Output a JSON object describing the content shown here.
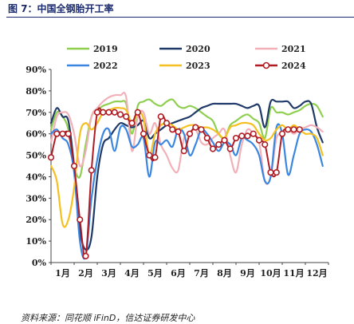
{
  "header": {
    "title": "图 7：中国全钢胎开工率"
  },
  "footer": {
    "source": "资料来源：同花顺 iFinD，信达证券研发中心"
  },
  "chart_data": {
    "type": "line",
    "title": "图 7：中国全钢胎开工率",
    "xlabel": "",
    "ylabel": "",
    "ylim": [
      0,
      90
    ],
    "xlim": [
      0,
      12
    ],
    "y_ticks": [
      "0%",
      "10%",
      "20%",
      "30%",
      "40%",
      "50%",
      "60%",
      "70%",
      "80%",
      "90%"
    ],
    "x_ticks": [
      "1月",
      "2月",
      "3月",
      "4月",
      "5月",
      "6月",
      "7月",
      "8月",
      "9月",
      "10月",
      "11月",
      "12月"
    ],
    "grid": false,
    "legend": "top",
    "series": [
      {
        "name": "2019",
        "color": "#8fcf4f",
        "marker": false,
        "x": [
          0,
          0.25,
          0.5,
          0.75,
          1,
          1.25,
          1.5,
          1.75,
          2,
          2.25,
          2.5,
          2.75,
          3,
          3.25,
          3.5,
          3.75,
          4,
          4.25,
          4.5,
          4.75,
          5,
          5.25,
          5.5,
          5.75,
          6,
          6.25,
          6.5,
          6.75,
          7,
          7.25,
          7.5,
          7.75,
          8,
          8.25,
          8.5,
          8.75,
          9,
          9.25,
          9.5,
          9.75,
          10,
          10.25,
          10.5,
          10.75,
          11,
          11.25,
          11.5,
          11.75
        ],
        "y": [
          62,
          70,
          68,
          62,
          45,
          40,
          55,
          68,
          71,
          73,
          74,
          75,
          75,
          74,
          60,
          73,
          75,
          76,
          74,
          73,
          75,
          76,
          73,
          72,
          73,
          72,
          70,
          68,
          66,
          60,
          58,
          64,
          66,
          68,
          69,
          67,
          65,
          58,
          72,
          70,
          70,
          69,
          70,
          71,
          73,
          74,
          73,
          68
        ]
      },
      {
        "name": "2020",
        "color": "#1f3a68",
        "marker": false,
        "x": [
          0,
          0.25,
          0.5,
          0.75,
          1,
          1.25,
          1.5,
          1.75,
          2,
          2.25,
          2.5,
          2.75,
          3,
          3.25,
          3.5,
          3.75,
          4,
          4.25,
          4.5,
          4.75,
          5,
          5.25,
          5.5,
          5.75,
          6,
          6.25,
          6.5,
          6.75,
          7,
          7.25,
          7.5,
          7.75,
          8,
          8.25,
          8.5,
          8.75,
          9,
          9.25,
          9.5,
          9.75,
          10,
          10.25,
          10.5,
          10.75,
          11,
          11.25,
          11.5,
          11.75
        ],
        "y": [
          65,
          72,
          68,
          66,
          45,
          15,
          6,
          12,
          40,
          55,
          58,
          62,
          65,
          64,
          63,
          64,
          66,
          58,
          60,
          62,
          64,
          65,
          66,
          67,
          68,
          70,
          72,
          73,
          74,
          74,
          74,
          74,
          74,
          73,
          72,
          73,
          73,
          63,
          75,
          75,
          75,
          75,
          72,
          73,
          75,
          74,
          63,
          56
        ]
      },
      {
        "name": "2021",
        "color": "#f2b0b8",
        "marker": false,
        "x": [
          0,
          0.25,
          0.5,
          0.75,
          1,
          1.25,
          1.5,
          1.75,
          2,
          2.25,
          2.5,
          2.75,
          3,
          3.25,
          3.5,
          3.75,
          4,
          4.25,
          4.5,
          4.75,
          5,
          5.25,
          5.5,
          5.75,
          6,
          6.25,
          6.5,
          6.75,
          7,
          7.25,
          7.5,
          7.75,
          8,
          8.25,
          8.5,
          8.75,
          9,
          9.25,
          9.5,
          9.75,
          10,
          10.25,
          10.5,
          10.75,
          11,
          11.25,
          11.5,
          11.75
        ],
        "y": [
          56,
          68,
          70,
          69,
          60,
          45,
          52,
          68,
          72,
          75,
          77,
          78,
          78,
          77,
          52,
          68,
          70,
          60,
          65,
          55,
          50,
          44,
          43,
          58,
          60,
          62,
          56,
          55,
          58,
          60,
          62,
          50,
          42,
          55,
          62,
          60,
          56,
          38,
          40,
          58,
          60,
          62,
          60,
          62,
          63,
          64,
          63,
          61
        ]
      },
      {
        "name": "2022",
        "color": "#3a86e0",
        "marker": false,
        "x": [
          0,
          0.25,
          0.5,
          0.75,
          1,
          1.25,
          1.5,
          1.75,
          2,
          2.25,
          2.5,
          2.75,
          3,
          3.25,
          3.5,
          3.75,
          4,
          4.25,
          4.5,
          4.75,
          5,
          5.25,
          5.5,
          5.75,
          6,
          6.25,
          6.5,
          6.75,
          7,
          7.25,
          7.5,
          7.75,
          8,
          8.25,
          8.5,
          8.75,
          9,
          9.25,
          9.5,
          9.75,
          10,
          10.25,
          10.5,
          10.75,
          11,
          11.25,
          11.5,
          11.75
        ],
        "y": [
          60,
          62,
          58,
          55,
          42,
          10,
          3,
          30,
          48,
          60,
          62,
          52,
          63,
          62,
          54,
          55,
          58,
          40,
          56,
          55,
          57,
          54,
          62,
          60,
          50,
          55,
          62,
          60,
          56,
          52,
          56,
          55,
          50,
          58,
          57,
          55,
          50,
          38,
          40,
          63,
          60,
          41,
          50,
          60,
          62,
          61,
          55,
          45
        ]
      },
      {
        "name": "2023",
        "color": "#f5c020",
        "marker": false,
        "x": [
          0,
          0.25,
          0.5,
          0.75,
          1,
          1.25,
          1.5,
          1.75,
          2,
          2.25,
          2.5,
          2.75,
          3,
          3.25,
          3.5,
          3.75,
          4,
          4.25,
          4.5,
          4.75,
          5,
          5.25,
          5.5,
          5.75,
          6,
          6.25,
          6.5,
          6.75,
          7,
          7.25,
          7.5,
          7.75,
          8,
          8.25,
          8.5,
          8.75,
          9,
          9.25,
          9.5,
          9.75,
          10,
          10.25,
          10.5,
          10.75,
          11,
          11.25,
          11.5,
          11.75
        ],
        "y": [
          45,
          38,
          18,
          20,
          35,
          60,
          65,
          62,
          65,
          70,
          71,
          72,
          72,
          71,
          65,
          70,
          67,
          50,
          60,
          64,
          65,
          64,
          62,
          63,
          64,
          64,
          63,
          63,
          62,
          60,
          58,
          63,
          64,
          65,
          65,
          64,
          60,
          57,
          58,
          62,
          64,
          62,
          64,
          62,
          60,
          60,
          58,
          50
        ]
      },
      {
        "name": "2024",
        "color": "#b01c24",
        "marker": true,
        "x": [
          0,
          0.25,
          0.5,
          0.75,
          1,
          1.25,
          1.5,
          1.75,
          2,
          2.25,
          2.5,
          2.75,
          3,
          3.25,
          3.5,
          3.75,
          4,
          4.25,
          4.5,
          4.75,
          5,
          5.25,
          5.5,
          5.75,
          6,
          6.25,
          6.5,
          6.75,
          7,
          7.25,
          7.5,
          7.75,
          8,
          8.25,
          8.5,
          8.75,
          9,
          9.25,
          9.5,
          9.75,
          10,
          10.25,
          10.5,
          10.75
        ],
        "y": [
          49,
          60,
          60,
          60,
          45,
          20,
          3,
          43,
          70,
          70,
          70,
          70,
          69,
          68,
          65,
          70,
          60,
          50,
          49,
          68,
          65,
          62,
          61,
          52,
          60,
          63,
          62,
          58,
          53,
          55,
          57,
          53,
          58,
          59,
          59,
          60,
          57,
          55,
          42,
          42,
          60,
          62,
          62,
          62
        ]
      }
    ]
  }
}
